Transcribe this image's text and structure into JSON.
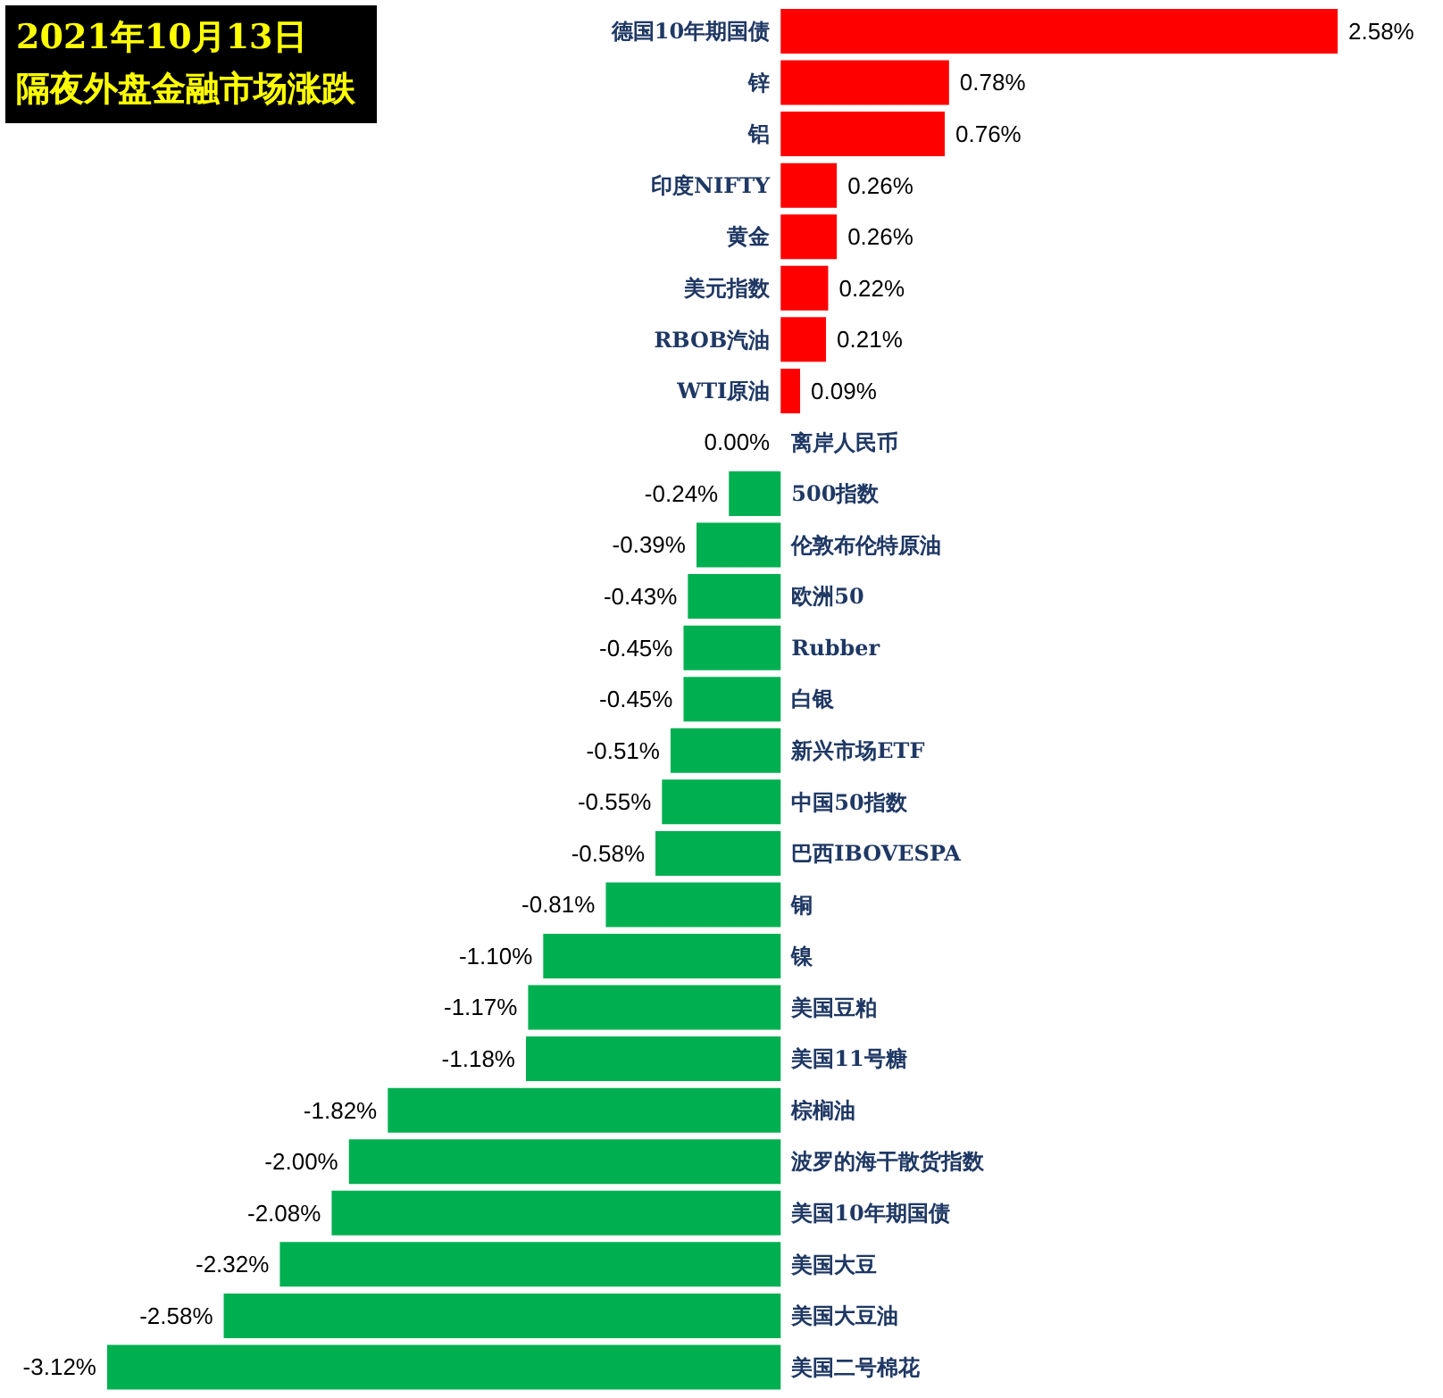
{
  "chart_data": {
    "type": "bar",
    "orientation": "horizontal",
    "title": "2021年10月13日",
    "subtitle": "隔夜外盘金融市场涨跌",
    "categories": [
      "德国10年期国债",
      "锌",
      "铝",
      "印度NIFTY",
      "黄金",
      "美元指数",
      "RBOB汽油",
      "WTI原油",
      "离岸人民币",
      "500指数",
      "伦敦布伦特原油",
      "欧洲50",
      "Rubber",
      "白银",
      "新兴市场ETF",
      "中国50指数",
      "巴西IBOVESPA",
      "铜",
      "镍",
      "美国豆粕",
      "美国11号糖",
      "棕榈油",
      "波罗的海干散货指数",
      "美国10年期国债",
      "美国大豆",
      "美国大豆油",
      "美国二号棉花"
    ],
    "values": [
      2.58,
      0.78,
      0.76,
      0.26,
      0.26,
      0.22,
      0.21,
      0.09,
      0,
      -0.24,
      -0.39,
      -0.43,
      -0.45,
      -0.45,
      -0.51,
      -0.55,
      -0.58,
      -0.81,
      -1.1,
      -1.17,
      -1.18,
      -1.82,
      -2.0,
      -2.08,
      -2.32,
      -2.58,
      -3.12
    ],
    "value_labels": [
      "2.58%",
      "0.78%",
      "0.76%",
      "0.26%",
      "0.26%",
      "0.22%",
      "0.21%",
      "0.09%",
      "0.00%",
      "-0.24%",
      "-0.39%",
      "-0.43%",
      "-0.45%",
      "-0.45%",
      "-0.51%",
      "-0.55%",
      "-0.58%",
      "-0.81%",
      "-1.10%",
      "-1.17%",
      "-1.18%",
      "-1.82%",
      "-2.00%",
      "-2.08%",
      "-2.32%",
      "-2.58%",
      "-3.12%"
    ],
    "colors": [
      "#ff0000",
      "#ff0000",
      "#ff0000",
      "#ff0000",
      "#ff0000",
      "#ff0000",
      "#ff0000",
      "#ff0000",
      "#ff0000",
      "#00b050",
      "#00b050",
      "#00b050",
      "#00b050",
      "#00b050",
      "#00b050",
      "#00b050",
      "#00b050",
      "#00b050",
      "#00b050",
      "#00b050",
      "#00b050",
      "#00b050",
      "#00b050",
      "#00b050",
      "#00b050",
      "#00b050",
      "#00b050"
    ],
    "grid": false,
    "legend": false
  }
}
